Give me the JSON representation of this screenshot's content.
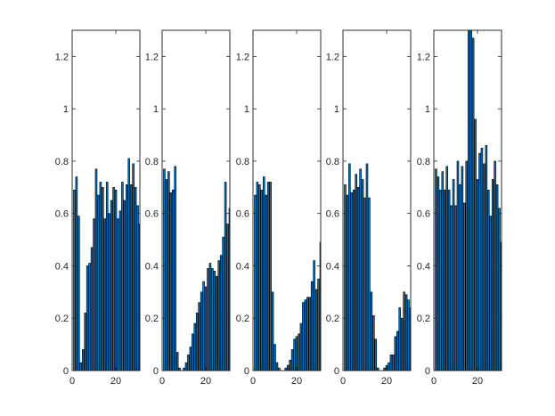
{
  "colors": {
    "bar_fill": "#0072bd",
    "bar_edge": "#000000",
    "axis": "#262626",
    "background": "#ffffff"
  },
  "chart_data": [
    {
      "type": "bar",
      "title": "",
      "xlabel": "",
      "ylabel": "",
      "xlim": [
        0,
        31
      ],
      "ylim": [
        0,
        1.3
      ],
      "xticks": [
        0,
        20
      ],
      "yticks": [
        0,
        0.2,
        0.4,
        0.6,
        0.8,
        1.0,
        1.2
      ],
      "xtick_labels": [
        "0",
        "20"
      ],
      "ytick_labels": [
        "0",
        "0.2",
        "0.4",
        "0.6",
        "0.8",
        "1",
        "1.2"
      ],
      "grid": false,
      "x": [
        1,
        2,
        3,
        4,
        5,
        6,
        7,
        8,
        9,
        10,
        11,
        12,
        13,
        14,
        15,
        16,
        17,
        18,
        19,
        20,
        21,
        22,
        23,
        24,
        25,
        26,
        27,
        28,
        29,
        30,
        31
      ],
      "values": [
        0.69,
        0.74,
        0.59,
        0.03,
        0.08,
        0.22,
        0.4,
        0.41,
        0.47,
        0.58,
        0.77,
        0.67,
        0.72,
        0.7,
        0.58,
        0.72,
        0.6,
        0.65,
        0.7,
        0.69,
        0.58,
        0.61,
        0.72,
        0.65,
        0.71,
        0.81,
        0.71,
        0.79,
        0.7,
        0.63,
        0.56
      ]
    },
    {
      "type": "bar",
      "title": "",
      "xlabel": "",
      "ylabel": "",
      "xlim": [
        0,
        31
      ],
      "ylim": [
        0,
        1.3
      ],
      "xticks": [
        0,
        20
      ],
      "yticks": [
        0,
        0.2,
        0.4,
        0.6,
        0.8,
        1.0,
        1.2
      ],
      "xtick_labels": [
        "0",
        "20"
      ],
      "ytick_labels": [
        "0",
        "0.2",
        "0.4",
        "0.6",
        "0.8",
        "1",
        "1.2"
      ],
      "grid": false,
      "x": [
        1,
        2,
        3,
        4,
        5,
        6,
        7,
        8,
        9,
        10,
        11,
        12,
        13,
        14,
        15,
        16,
        17,
        18,
        19,
        20,
        21,
        22,
        23,
        24,
        25,
        26,
        27,
        28,
        29,
        30,
        31
      ],
      "values": [
        0.77,
        0.73,
        0.76,
        0.68,
        0.69,
        0.78,
        0.07,
        0.01,
        0.0,
        0.01,
        0.03,
        0.06,
        0.09,
        0.14,
        0.18,
        0.22,
        0.26,
        0.3,
        0.34,
        0.32,
        0.39,
        0.41,
        0.39,
        0.38,
        0.36,
        0.42,
        0.44,
        0.51,
        0.72,
        0.56,
        0.62
      ]
    },
    {
      "type": "bar",
      "title": "",
      "xlabel": "",
      "ylabel": "",
      "xlim": [
        0,
        31
      ],
      "ylim": [
        0,
        1.3
      ],
      "xticks": [
        0,
        20
      ],
      "yticks": [
        0,
        0.2,
        0.4,
        0.6,
        0.8,
        1.0,
        1.2
      ],
      "xtick_labels": [
        "0",
        "20"
      ],
      "ytick_labels": [
        "0",
        "0.2",
        "0.4",
        "0.6",
        "0.8",
        "1",
        "1.2"
      ],
      "grid": false,
      "x": [
        1,
        2,
        3,
        4,
        5,
        6,
        7,
        8,
        9,
        10,
        11,
        12,
        13,
        14,
        15,
        16,
        17,
        18,
        19,
        20,
        21,
        22,
        23,
        24,
        25,
        26,
        27,
        28,
        29,
        30,
        31
      ],
      "values": [
        0.67,
        0.72,
        0.71,
        0.69,
        0.74,
        0.67,
        0.72,
        0.72,
        0.3,
        0.1,
        0.03,
        0.01,
        0.0,
        0.0,
        0.01,
        0.02,
        0.04,
        0.08,
        0.12,
        0.13,
        0.14,
        0.18,
        0.26,
        0.27,
        0.28,
        0.28,
        0.34,
        0.42,
        0.31,
        0.35,
        0.49
      ]
    },
    {
      "type": "bar",
      "title": "",
      "xlabel": "",
      "ylabel": "",
      "xlim": [
        0,
        31
      ],
      "ylim": [
        0,
        1.3
      ],
      "xticks": [
        0,
        20
      ],
      "yticks": [
        0,
        0.2,
        0.4,
        0.6,
        0.8,
        1.0,
        1.2
      ],
      "xtick_labels": [
        "0",
        "20"
      ],
      "ytick_labels": [
        "0",
        "0.2",
        "0.4",
        "0.6",
        "0.8",
        "1",
        "1.2"
      ],
      "grid": false,
      "x": [
        1,
        2,
        3,
        4,
        5,
        6,
        7,
        8,
        9,
        10,
        11,
        12,
        13,
        14,
        15,
        16,
        17,
        18,
        19,
        20,
        21,
        22,
        23,
        24,
        25,
        26,
        27,
        28,
        29,
        30,
        31
      ],
      "values": [
        0.71,
        0.67,
        0.79,
        0.68,
        0.69,
        0.75,
        0.7,
        0.77,
        0.73,
        0.66,
        0.79,
        0.66,
        0.3,
        0.21,
        0.12,
        0.01,
        0.0,
        0.0,
        0.01,
        0.02,
        0.03,
        0.06,
        0.06,
        0.13,
        0.15,
        0.24,
        0.2,
        0.3,
        0.29,
        0.27,
        0.24
      ]
    },
    {
      "type": "bar",
      "title": "",
      "xlabel": "",
      "ylabel": "",
      "xlim": [
        0,
        31
      ],
      "ylim": [
        0,
        1.3
      ],
      "xticks": [
        0,
        20
      ],
      "yticks": [
        0,
        0.2,
        0.4,
        0.6,
        0.8,
        1.0,
        1.2
      ],
      "xtick_labels": [
        "0",
        "20"
      ],
      "ytick_labels": [
        "0",
        "0.2",
        "0.4",
        "0.6",
        "0.8",
        "1",
        "1.2"
      ],
      "grid": false,
      "x": [
        1,
        2,
        3,
        4,
        5,
        6,
        7,
        8,
        9,
        10,
        11,
        12,
        13,
        14,
        15,
        16,
        17,
        18,
        19,
        20,
        21,
        22,
        23,
        24,
        25,
        26,
        27,
        28,
        29,
        30,
        31
      ],
      "values": [
        0.77,
        0.74,
        0.69,
        0.76,
        0.69,
        0.78,
        0.69,
        0.63,
        0.73,
        0.63,
        0.8,
        0.71,
        0.78,
        0.64,
        0.8,
        1.34,
        1.36,
        1.27,
        0.96,
        0.73,
        0.83,
        0.85,
        0.79,
        0.86,
        0.69,
        0.59,
        0.73,
        0.8,
        0.71,
        0.62,
        0.49
      ]
    }
  ]
}
